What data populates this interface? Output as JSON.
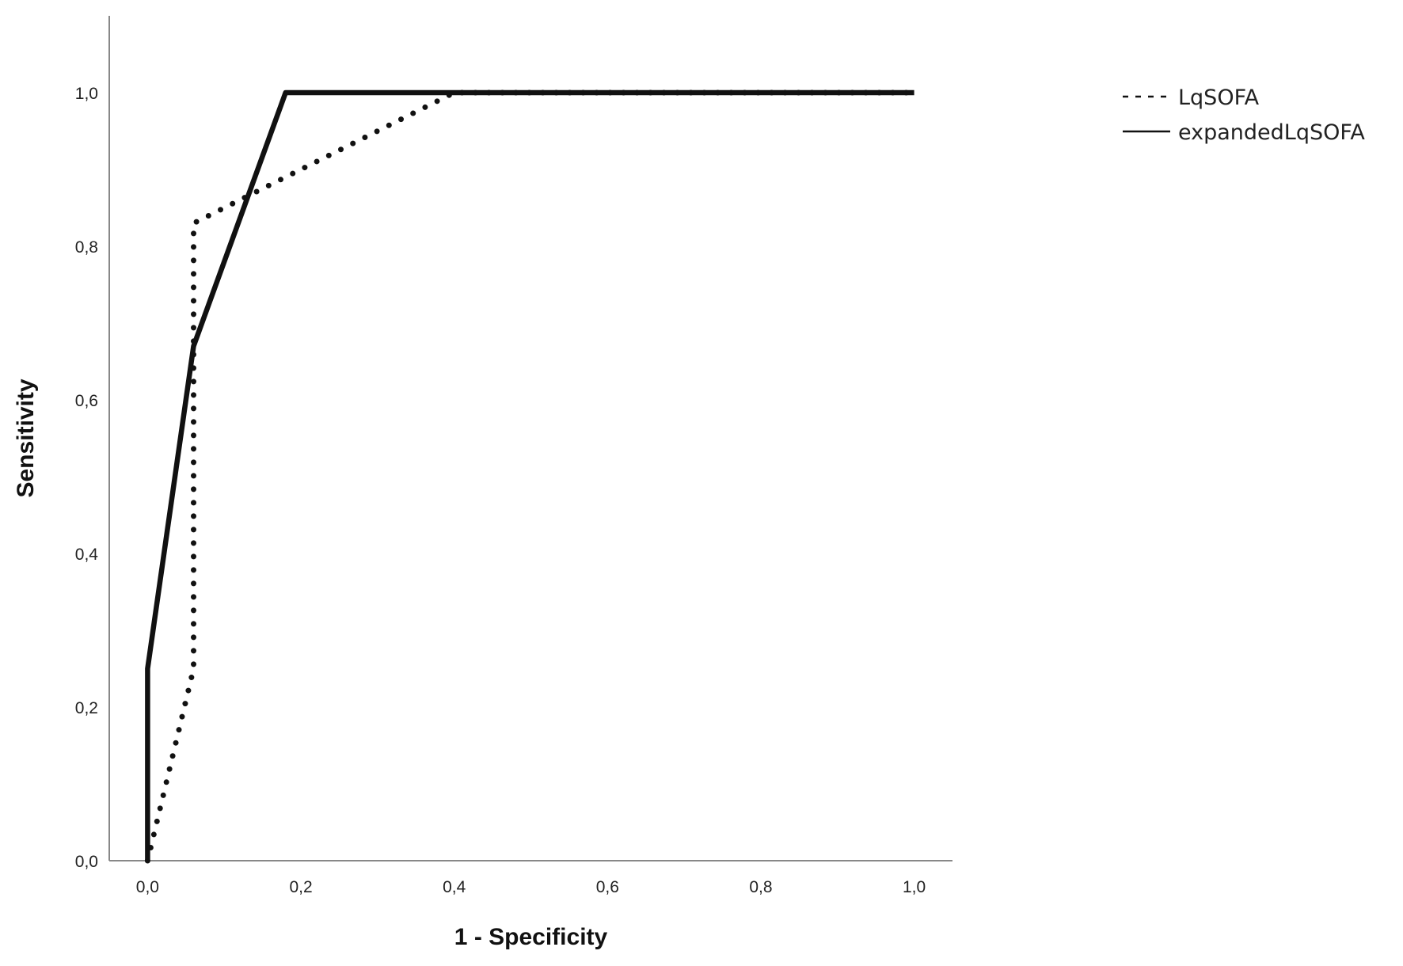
{
  "chart_data": {
    "type": "line",
    "title": "",
    "xlabel": "1 - Specificity",
    "ylabel": "Sensitivity",
    "xlim": [
      -0.05,
      1.05
    ],
    "ylim": [
      0,
      1.1
    ],
    "x_ticks": [
      "0,0",
      "0,2",
      "0,4",
      "0,6",
      "0,8",
      "1,0"
    ],
    "y_ticks": [
      "0,0",
      "0,2",
      "0,4",
      "0,6",
      "0,8",
      "1,0"
    ],
    "grid": false,
    "legend_position": "top-right",
    "series": [
      {
        "name": "LqSOFA",
        "style": "dotted",
        "color": "#111111",
        "x": [
          0.0,
          0.06,
          0.06,
          0.4,
          1.0
        ],
        "y": [
          0.0,
          0.25,
          0.83,
          1.0,
          1.0
        ]
      },
      {
        "name": "expandedLqSOFA",
        "style": "solid",
        "color": "#111111",
        "x": [
          0.0,
          0.0,
          0.06,
          0.18,
          1.0
        ],
        "y": [
          0.0,
          0.25,
          0.67,
          1.0,
          1.0
        ]
      }
    ]
  }
}
